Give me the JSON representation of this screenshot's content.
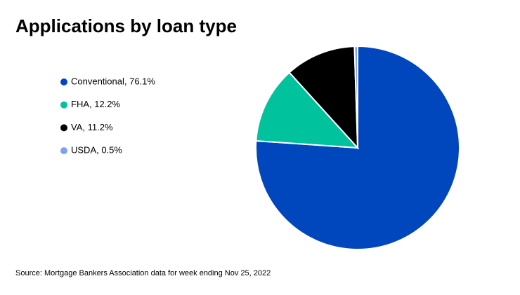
{
  "chart_data": {
    "type": "pie",
    "title": "Applications by loan type",
    "categories": [
      "Conventional, 76.1%",
      "FHA, 12.2%",
      "VA, 11.2%",
      "USDA, 0.5%"
    ],
    "values": [
      76.1,
      12.2,
      11.2,
      0.5
    ],
    "colors": [
      "#0046bd",
      "#00c29c",
      "#000000",
      "#7ea2f0"
    ],
    "source": "Source: Mortgage Bankers Association data for week ending Nov 25, 2022"
  }
}
